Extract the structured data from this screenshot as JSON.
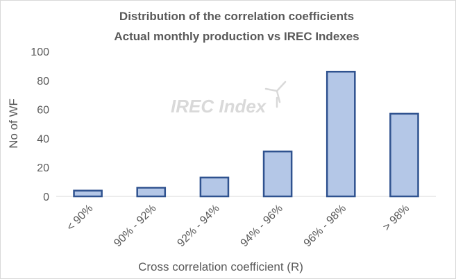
{
  "chart_data": {
    "type": "bar",
    "title": [
      "Distribution of the correlation coefficients",
      "Actual monthly production vs IREC Indexes"
    ],
    "xlabel": "Cross correlation coefficient (R)",
    "ylabel": "No of WF",
    "categories": [
      "< 90%",
      "90% - 92%",
      "92% - 94%",
      "94% - 96%",
      "96% - 98%",
      "> 98%"
    ],
    "values": [
      4,
      6,
      13,
      31,
      86,
      57
    ],
    "ylim": [
      0,
      100
    ],
    "yticks": [
      0,
      20,
      40,
      60,
      80,
      100
    ],
    "grid": false,
    "legend": "none",
    "bar_fill": "#b4c7e7",
    "bar_stroke": "#2f528f",
    "axis_color": "#d9d9d9",
    "text_color": "#595959",
    "watermark": "IREC Index",
    "watermark_icon": "wind-turbine-icon"
  }
}
